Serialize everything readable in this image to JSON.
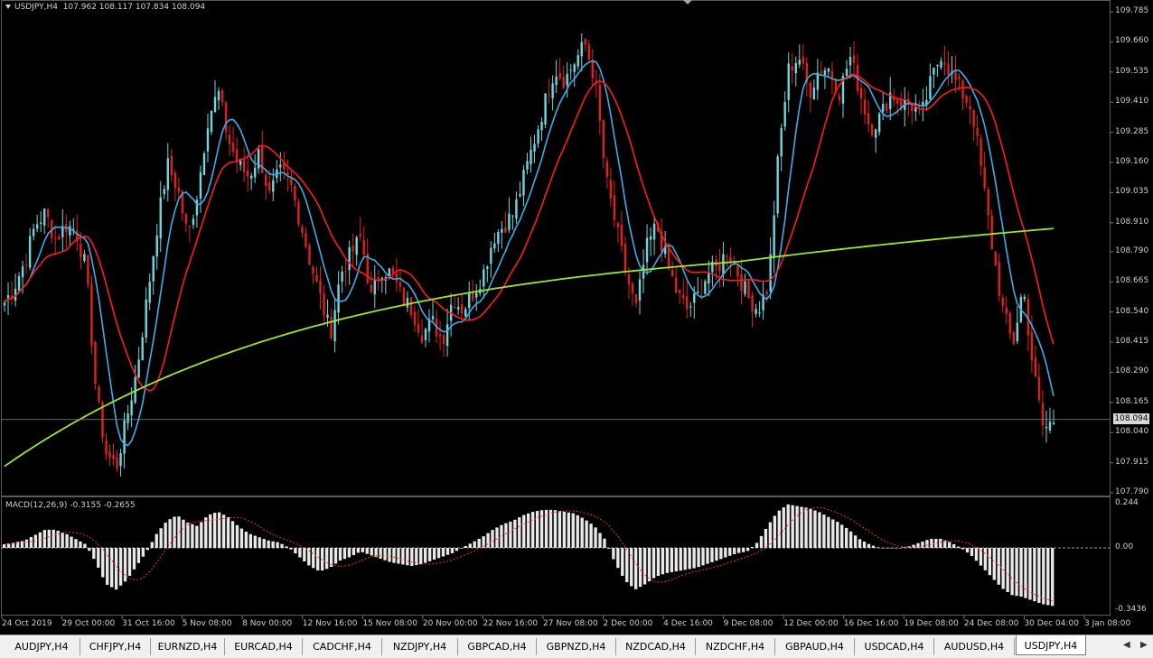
{
  "window": {
    "symbol_label": "USDJPY,H4",
    "ohlc": "107.962 108.117 107.834 108.094",
    "current_price": "108.094"
  },
  "price_axis": {
    "ticks": [
      "109.785",
      "109.660",
      "109.535",
      "109.410",
      "109.285",
      "109.160",
      "109.035",
      "108.910",
      "108.790",
      "108.665",
      "108.540",
      "108.415",
      "108.290",
      "108.165",
      "108.040",
      "107.915",
      "107.790"
    ],
    "range": [
      107.79,
      109.785
    ]
  },
  "macd": {
    "label": "MACD(12,26,9) -0.3155 -0.2655",
    "ticks": [
      "0.244",
      "0.00",
      "-0.3436"
    ],
    "range": [
      -0.3436,
      0.244
    ]
  },
  "time_axis": {
    "labels": [
      "24 Oct 2019",
      "29 Oct 00:00",
      "31 Oct 16:00",
      "5 Nov 08:00",
      "8 Nov 00:00",
      "12 Nov 16:00",
      "15 Nov 08:00",
      "20 Nov 00:00",
      "22 Nov 16:00",
      "27 Nov 08:00",
      "2 Dec 00:00",
      "4 Dec 16:00",
      "9 Dec 08:00",
      "12 Dec 00:00",
      "16 Dec 16:00",
      "19 Dec 08:00",
      "24 Dec 08:00",
      "30 Dec 04:00",
      "3 Jan 08:00"
    ]
  },
  "colors": {
    "background": "#000000",
    "bull": "#6fd6df",
    "bear": "#e02020",
    "ma_fast": "#3aaee8",
    "ma_slow": "#ff1a1a",
    "ma_long": "#9be82a",
    "histogram": "#e8e8e8",
    "signal": "#ff2a2a"
  },
  "series": {
    "price_path": [
      108.58,
      108.65,
      108.75,
      108.9,
      108.95,
      108.84,
      108.9,
      108.88,
      108.72,
      108.2,
      107.95,
      107.9,
      108.1,
      108.3,
      108.6,
      108.9,
      109.15,
      109.05,
      108.85,
      109.05,
      109.35,
      109.45,
      109.25,
      109.15,
      109.1,
      109.2,
      109.02,
      109.12,
      109.08,
      108.92,
      108.75,
      108.6,
      108.45,
      108.7,
      108.78,
      108.85,
      108.6,
      108.72,
      108.7,
      108.6,
      108.55,
      108.45,
      108.5,
      108.42,
      108.6,
      108.55,
      108.62,
      108.7,
      108.85,
      108.9,
      108.95,
      109.1,
      109.25,
      109.4,
      109.55,
      109.5,
      109.58,
      109.65,
      109.5,
      109.1,
      108.9,
      108.7,
      108.55,
      108.8,
      108.9,
      108.75,
      108.62,
      108.55,
      108.6,
      108.7,
      108.72,
      108.8,
      108.7,
      108.6,
      108.55,
      108.65,
      109.2,
      109.55,
      109.6,
      109.45,
      109.55,
      109.55,
      109.45,
      109.6,
      109.45,
      109.3,
      109.35,
      109.45,
      109.4,
      109.4,
      109.35,
      109.5,
      109.62,
      109.52,
      109.45,
      109.38,
      109.1,
      108.8,
      108.55,
      108.4,
      108.65,
      108.3,
      108.05,
      108.09
    ],
    "macd_hist": [
      0.02,
      0.03,
      0.04,
      0.07,
      0.1,
      0.1,
      0.08,
      0.05,
      0.02,
      -0.08,
      -0.2,
      -0.23,
      -0.18,
      -0.1,
      -0.02,
      0.08,
      0.15,
      0.18,
      0.14,
      0.12,
      0.18,
      0.2,
      0.17,
      0.12,
      0.08,
      0.06,
      0.04,
      0.03,
      0.0,
      -0.05,
      -0.1,
      -0.13,
      -0.11,
      -0.07,
      -0.05,
      -0.02,
      -0.04,
      -0.06,
      -0.08,
      -0.09,
      -0.1,
      -0.09,
      -0.07,
      -0.05,
      -0.03,
      0.0,
      0.03,
      0.06,
      0.1,
      0.13,
      0.15,
      0.18,
      0.2,
      0.21,
      0.21,
      0.2,
      0.19,
      0.16,
      0.12,
      0.05,
      -0.08,
      -0.18,
      -0.23,
      -0.2,
      -0.16,
      -0.14,
      -0.13,
      -0.12,
      -0.11,
      -0.09,
      -0.07,
      -0.05,
      -0.03,
      -0.02,
      0.03,
      0.12,
      0.2,
      0.24,
      0.23,
      0.22,
      0.2,
      0.17,
      0.14,
      0.1,
      0.05,
      0.02,
      0.0,
      0.0,
      0.0,
      0.01,
      0.03,
      0.05,
      0.05,
      0.03,
      0.0,
      -0.04,
      -0.1,
      -0.16,
      -0.22,
      -0.26,
      -0.27,
      -0.29,
      -0.31,
      -0.32
    ]
  }
}
